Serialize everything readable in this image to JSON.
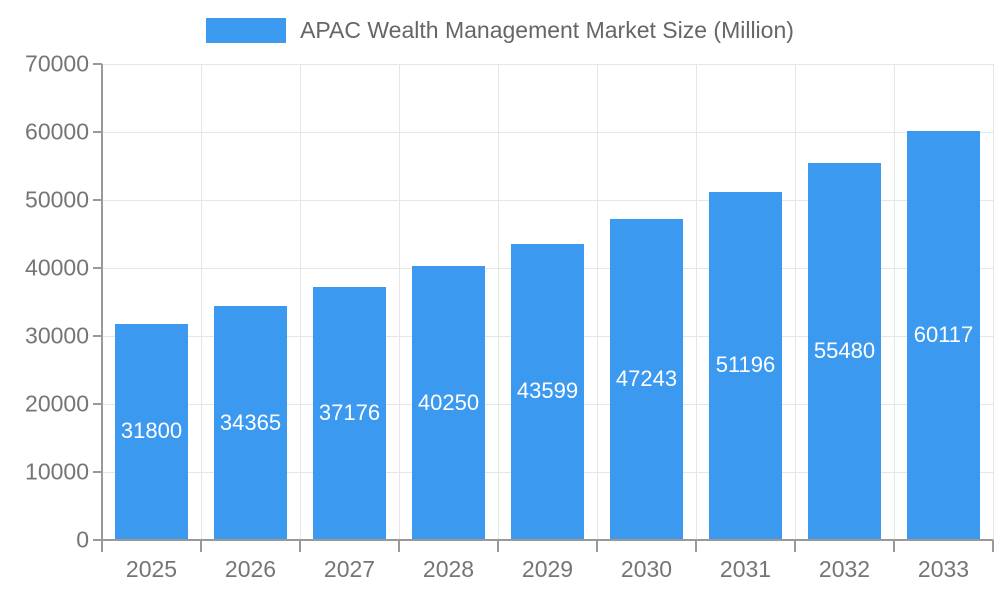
{
  "legend": {
    "label": "APAC Wealth Management Market Size (Million)"
  },
  "colors": {
    "bar": "#3C99F0",
    "bar_label": "#FFFFFF",
    "axis": "#999999",
    "grid": "#E6E6E6",
    "axis_text": "#757575",
    "legend_text": "#666666",
    "background": "#FFFFFF"
  },
  "chart_data": {
    "type": "bar",
    "title": "APAC Wealth Management Market Size (Million)",
    "categories": [
      "2025",
      "2026",
      "2027",
      "2028",
      "2029",
      "2030",
      "2031",
      "2032",
      "2033"
    ],
    "values": [
      31800,
      34365,
      37176,
      40250,
      43599,
      47243,
      51196,
      55480,
      60117
    ],
    "xlabel": "",
    "ylabel": "",
    "ylim": [
      0,
      70000
    ],
    "ytick_step": 10000,
    "grid": true,
    "legend_position": "top-center",
    "bar_labels": "inside-middle",
    "bar_width_fraction": 0.73
  }
}
